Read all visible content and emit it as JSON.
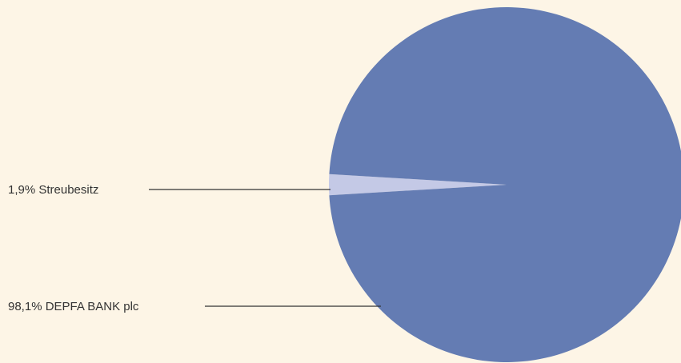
{
  "chart_data": {
    "type": "pie",
    "slices": [
      {
        "label": "98,1% DEPFA BANK plc",
        "value": 98.1,
        "color": "#647cb3"
      },
      {
        "label": "1,9% Streubesitz",
        "value": 1.9,
        "color": "#c4c9e6"
      }
    ],
    "legend": "none"
  },
  "colors": {
    "background": "#fdf5e6",
    "leader_line": "#333333",
    "text": "#333333"
  }
}
